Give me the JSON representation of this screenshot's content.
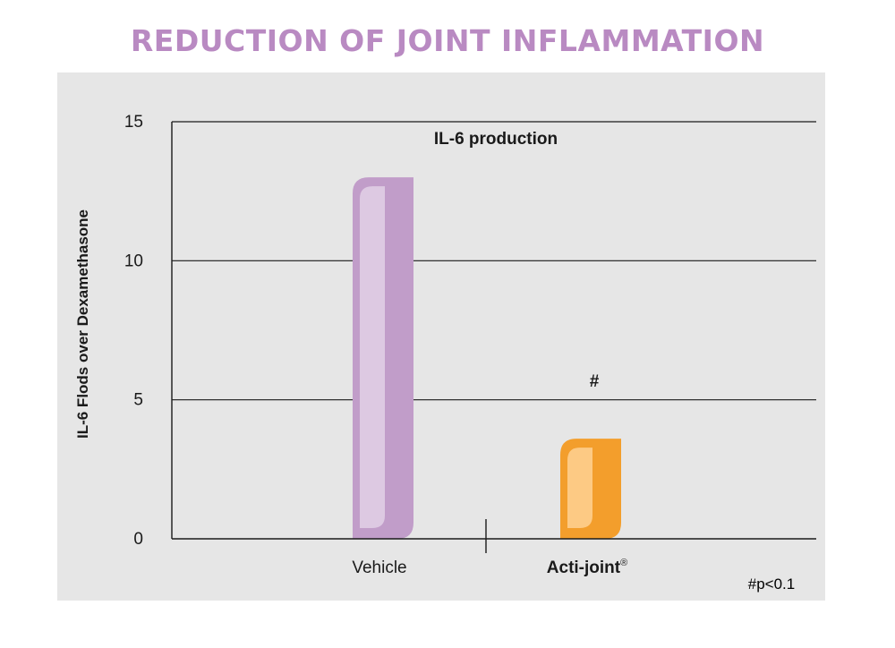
{
  "page_title": "REDUCTION OF JOINT INFLAMMATION",
  "colors": {
    "title": "#b98ac2",
    "panel": "#e6e6e6",
    "vehicle_bar": "#c19dc9",
    "vehicle_highlight": "#ddc9e2",
    "actijoint_bar": "#f39e2c",
    "actijoint_highlight": "#fdca84",
    "axis": "#1a1a1a"
  },
  "chart_data": {
    "type": "bar",
    "title": "IL-6 production",
    "ylabel": "IL-6 Flods over Dexamethasone",
    "xlabel": "",
    "ylim": [
      0,
      15
    ],
    "yticks": [
      0,
      5,
      10,
      15
    ],
    "categories": [
      "Vehicle",
      "Acti-joint"
    ],
    "category_superscripts": [
      "",
      "®"
    ],
    "values": [
      13.0,
      3.6
    ],
    "annotations": [
      "",
      "#"
    ],
    "footnote": "#p<0.1",
    "grid": true
  }
}
